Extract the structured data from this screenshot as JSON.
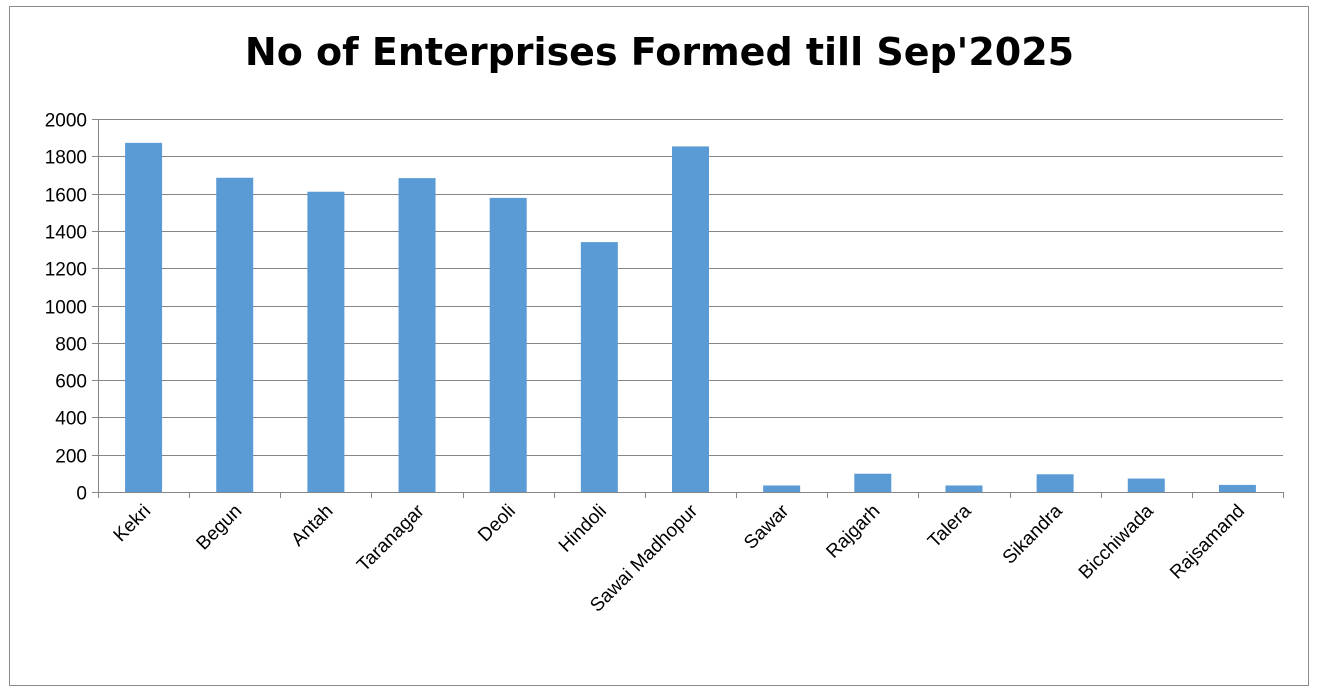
{
  "chart_data": {
    "type": "bar",
    "title": "No of Enterprises Formed till Sep'2025",
    "xlabel": "",
    "ylabel": "",
    "categories": [
      "Kekri",
      "Begun",
      "Antah",
      "Taranagar",
      "Deoli",
      "Hindoli",
      "Sawai Madhopur",
      "Sawar",
      "Rajgarh",
      "Talera",
      "Sikandra",
      "Bicchiwada",
      "Rajsamand"
    ],
    "values": [
      1872,
      1685,
      1610,
      1683,
      1577,
      1340,
      1853,
      35,
      98,
      35,
      95,
      72,
      38
    ],
    "ylim": [
      0,
      2000
    ],
    "yticks": [
      0,
      200,
      400,
      600,
      800,
      1000,
      1200,
      1400,
      1600,
      1800,
      2000
    ],
    "grid": true,
    "legend": "none",
    "colors": {
      "bar": "#5b9bd5",
      "grid": "#868686",
      "axis": "#868686"
    }
  }
}
